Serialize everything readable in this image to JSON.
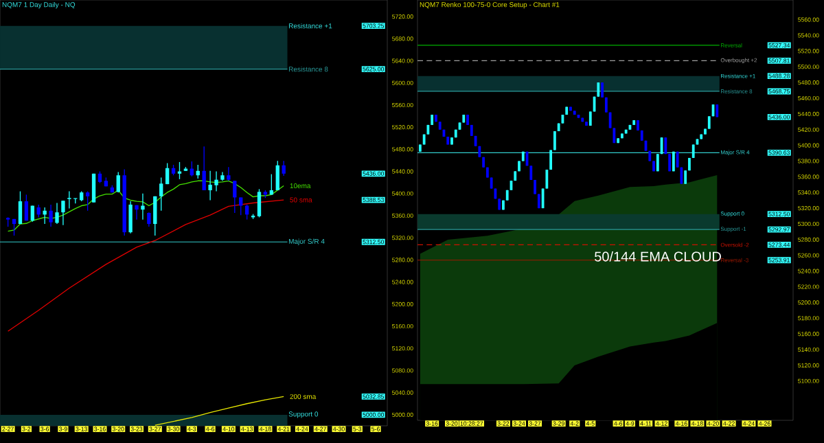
{
  "chart_data": [
    {
      "type": "candlestick",
      "title": "NQM7 1 Day Daily - NQ",
      "categories": [
        "2-27",
        null,
        null,
        "3-2",
        null,
        null,
        "3-6",
        null,
        null,
        "3-9",
        null,
        null,
        "3-13",
        null,
        null,
        "3-16",
        null,
        null,
        "3-20",
        null,
        null,
        "3-23",
        null,
        null,
        "3-27",
        null,
        null,
        "3-30",
        null,
        null,
        "4-3",
        null,
        null,
        "4-6",
        null,
        null,
        "4-10",
        null,
        null,
        "4-13",
        null,
        null,
        "4-18",
        null,
        null,
        "4-21",
        null,
        null,
        "4-24",
        null,
        null,
        "4-27",
        null,
        null,
        "4-30",
        null,
        null,
        "5-3",
        null,
        null,
        "5-6"
      ],
      "ohlc": [
        [
          5356,
          5357,
          5340,
          5353
        ],
        [
          5354,
          5354,
          5324,
          5345
        ],
        [
          5345,
          5404,
          5345,
          5386
        ],
        [
          5386,
          5398,
          5351,
          5351
        ],
        [
          5351,
          5378,
          5349,
          5378
        ],
        [
          5375,
          5380,
          5357,
          5362
        ],
        [
          5362,
          5375,
          5345,
          5369
        ],
        [
          5369,
          5380,
          5340,
          5348
        ],
        [
          5347,
          5383,
          5345,
          5366
        ],
        [
          5366,
          5387,
          5343,
          5387
        ],
        [
          5390,
          5404,
          5373,
          5392
        ],
        [
          5391,
          5391,
          5382,
          5391
        ],
        [
          5388,
          5404,
          5386,
          5402
        ],
        [
          5402,
          5404,
          5369,
          5395
        ],
        [
          5384,
          5436,
          5384,
          5436
        ],
        [
          5436,
          5440,
          5419,
          5421
        ],
        [
          5423,
          5429,
          5413,
          5413
        ],
        [
          5411,
          5415,
          5402,
          5402
        ],
        [
          5403,
          5439,
          5402,
          5433
        ],
        [
          5433,
          5444,
          5324,
          5330
        ],
        [
          5330,
          5386,
          5328,
          5380
        ],
        [
          5379,
          5379,
          5353,
          5371
        ],
        [
          5371,
          5400,
          5353,
          5378
        ],
        [
          5365,
          5366,
          5340,
          5345
        ],
        [
          5345,
          5395,
          5324,
          5395
        ],
        [
          5395,
          5429,
          5369,
          5418
        ],
        [
          5417,
          5455,
          5417,
          5446
        ],
        [
          5446,
          5452,
          5433,
          5436
        ],
        [
          5436,
          5457,
          5426,
          5440
        ],
        [
          5441,
          5448,
          5441,
          5445
        ],
        [
          5445,
          5458,
          5431,
          5433
        ],
        [
          5433,
          5452,
          5427,
          5441
        ],
        [
          5441,
          5485,
          5406,
          5406
        ],
        [
          5406,
          5441,
          5388,
          5416
        ],
        [
          5415,
          5440,
          5404,
          5425
        ],
        [
          5425,
          5439,
          5423,
          5433
        ],
        [
          5433,
          5448,
          5423,
          5425
        ],
        [
          5423,
          5423,
          5365,
          5393
        ],
        [
          5393,
          5393,
          5361,
          5378
        ],
        [
          5378,
          5380,
          5353,
          5362
        ],
        [
          5357,
          5363,
          5354,
          5360
        ],
        [
          5359,
          5408,
          5357,
          5403
        ],
        [
          5403,
          5406,
          5392,
          5398
        ],
        [
          5398,
          5435,
          5398,
          5406
        ],
        [
          5406,
          5459,
          5406,
          5451
        ],
        [
          5451,
          5459,
          5432,
          5436
        ],
        null,
        null,
        null,
        null,
        null,
        null,
        null,
        null,
        null,
        null,
        null,
        null,
        null,
        null,
        null
      ],
      "colors": [
        "#0000ff",
        "#0000ff",
        "#22ffff",
        "#0000ff",
        "#22ffff",
        "#0000ff",
        "#22ffff",
        "#0000ff",
        "#22ffff",
        "#22ffff",
        "#22ffff",
        "#22ffff",
        "#22ffff",
        "#0000ff",
        "#22ffff",
        "#0000ff",
        "#0000ff",
        "#0000ff",
        "#22ffff",
        "#0000ff",
        "#22ffff",
        "#0000ff",
        "#22ffff",
        "#0000ff",
        "#22ffff",
        "#22ffff",
        "#22ffff",
        "#0000ff",
        "#22ffff",
        "#22ffff",
        "#0000ff",
        "#22ffff",
        "#0000ff",
        "#22ffff",
        "#22ffff",
        "#22ffff",
        "#0000ff",
        "#0000ff",
        "#0000ff",
        "#0000ff",
        "#22ffff",
        "#22ffff",
        "#0000ff",
        "#22ffff",
        "#22ffff",
        "#0000ff",
        null,
        null,
        null,
        null,
        null,
        null,
        null,
        null,
        null,
        null,
        null,
        null,
        null,
        null,
        null
      ],
      "series": [
        {
          "type": "line",
          "name": "10ema",
          "color": "#44e000",
          "values": [
            5332,
            5334,
            5345,
            5346,
            5351,
            5354,
            5357,
            5355,
            5357,
            5361,
            5367,
            5373,
            5378,
            5380,
            5390,
            5396,
            5399,
            5399,
            5406,
            5392,
            5388,
            5386,
            5385,
            5378,
            5384,
            5394,
            5402,
            5408,
            5416,
            5418,
            5421,
            5423,
            5423,
            5421,
            5420,
            5421,
            5423,
            5418,
            5411,
            5402,
            5394,
            5396,
            5396,
            5398,
            5406,
            5414,
            null,
            null,
            null,
            null,
            null,
            null,
            null,
            null,
            null,
            null,
            null,
            null,
            null,
            null,
            null
          ]
        },
        {
          "type": "line",
          "name": "50 sma",
          "color": "#e00000",
          "values": [
            5151,
            null,
            null,
            null,
            null,
            5189,
            null,
            null,
            null,
            null,
            5229,
            null,
            null,
            null,
            null,
            null,
            5272,
            null,
            null,
            null,
            null,
            5303,
            null,
            null,
            5315,
            null,
            null,
            null,
            null,
            5344,
            null,
            null,
            null,
            5361,
            null,
            null,
            5377,
            null,
            null,
            null,
            5383,
            null,
            null,
            null,
            null,
            5388.53,
            null,
            null,
            null,
            null,
            null,
            null,
            null,
            null,
            null,
            null,
            null,
            null,
            null,
            null,
            null
          ]
        },
        {
          "type": "line",
          "name": "200 sma",
          "color": "#e8e800",
          "values": [
            null,
            null,
            null,
            null,
            null,
            null,
            null,
            null,
            null,
            null,
            null,
            null,
            null,
            null,
            null,
            null,
            null,
            null,
            null,
            null,
            null,
            null,
            null,
            null,
            4981,
            null,
            null,
            4988,
            null,
            null,
            4995,
            null,
            null,
            5004,
            null,
            null,
            5012,
            null,
            null,
            5020,
            null,
            null,
            5027,
            null,
            null,
            5032.85,
            null,
            null,
            null,
            null,
            null,
            null,
            null,
            null,
            null,
            null,
            null,
            null,
            null,
            null,
            null
          ]
        }
      ],
      "ylim": [
        4980,
        5750
      ],
      "yticks": [
        {
          "value": 5000,
          "label": "5000.00"
        },
        {
          "value": 5040,
          "label": "5040.00"
        },
        {
          "value": 5080,
          "label": "5080.00"
        },
        {
          "value": 5120,
          "label": "5120.00"
        },
        {
          "value": 5160,
          "label": "5160.00"
        },
        {
          "value": 5200,
          "label": "5200.00"
        },
        {
          "value": 5240,
          "label": "5240.00"
        },
        {
          "value": 5280,
          "label": "5280.00"
        },
        {
          "value": 5320,
          "label": "5320.00"
        },
        {
          "value": 5360,
          "label": "5360.00"
        },
        {
          "value": 5400,
          "label": "5400.00"
        },
        {
          "value": 5440,
          "label": "5440.00"
        },
        {
          "value": 5480,
          "label": "5480.00"
        },
        {
          "value": 5520,
          "label": "5520.00"
        },
        {
          "value": 5560,
          "label": "5560.00"
        },
        {
          "value": 5600,
          "label": "5600.00"
        },
        {
          "value": 5640,
          "label": "5640.00"
        },
        {
          "value": 5680,
          "label": "5680.00"
        },
        {
          "value": 5720,
          "label": "5720.00"
        }
      ],
      "y2lim": [
        4980,
        5750
      ],
      "y2ticks": [
        {
          "value": 5703.25,
          "label": "5703.25"
        },
        {
          "value": 5625,
          "label": "5625.00"
        },
        {
          "value": 5436,
          "label": "5436.00"
        },
        {
          "value": 5388.53,
          "label": "5388.53"
        },
        {
          "value": 5312.5,
          "label": "5312.50"
        },
        {
          "value": 5032.85,
          "label": "5032.85"
        },
        {
          "value": 5000,
          "label": "5000.00"
        }
      ],
      "ref_lines": [
        {
          "axis": "y",
          "value": 5312.5,
          "label": "Major S/R 4",
          "color": "#33cccc",
          "line_style": "solid"
        },
        {
          "axis": "y",
          "value": 5625,
          "label": "Resistance 8",
          "color": "#2a9a9a",
          "line_style": "solid"
        }
      ],
      "bands": [
        {
          "axis": "y",
          "from": 5625,
          "to": 5703.25,
          "label": "Resistance +1",
          "color": "#083030"
        },
        {
          "axis": "y",
          "from": 4980,
          "to": 5000,
          "label": "Support 0",
          "color": "#083030"
        }
      ]
    },
    {
      "type": "candlestick",
      "title": "NQM7 Renko 100-75-0 Core Setup - Chart #1",
      "categories": [
        null,
        null,
        null,
        "3-16",
        null,
        null,
        null,
        null,
        "3-20",
        null,
        null,
        null,
        null,
        "10:28:27",
        null,
        null,
        null,
        null,
        null,
        null,
        null,
        "3-22",
        null,
        null,
        null,
        "3-24",
        null,
        null,
        null,
        "3-27",
        null,
        null,
        null,
        null,
        null,
        "3-29",
        null,
        null,
        null,
        "4-2",
        null,
        null,
        null,
        "4-5",
        null,
        null,
        null,
        null,
        null,
        null,
        "4-6",
        null,
        null,
        "4-9",
        null,
        null,
        null,
        "4-11",
        null,
        null,
        null,
        "4-12",
        null,
        null,
        null,
        null,
        "4-16",
        null,
        null,
        null,
        "4-18",
        null,
        null,
        null,
        "4-20",
        null,
        null,
        null,
        "4-22",
        null,
        null,
        null,
        null,
        "4-24",
        null,
        null,
        null,
        "4-26"
      ],
      "ohlc": [
        [
          5392,
          5401,
          5392,
          5401
        ],
        [
          5401,
          5414,
          5401,
          5414
        ],
        [
          5414,
          5426,
          5414,
          5426
        ],
        [
          5426,
          5439,
          5426,
          5439
        ],
        [
          5439,
          5439,
          5430,
          5430
        ],
        [
          5430,
          5430,
          5420,
          5420
        ],
        [
          5420,
          5420,
          5411,
          5411
        ],
        [
          5411,
          5411,
          5401,
          5401
        ],
        [
          5401,
          5410,
          5401,
          5410
        ],
        [
          5410,
          5420,
          5410,
          5420
        ],
        [
          5420,
          5429,
          5420,
          5429
        ],
        [
          5429,
          5439,
          5429,
          5439
        ],
        [
          5439,
          5439,
          5426,
          5426
        ],
        [
          5426,
          5426,
          5412,
          5412
        ],
        [
          5412,
          5412,
          5399,
          5399
        ],
        [
          5399,
          5399,
          5385,
          5385
        ],
        [
          5385,
          5385,
          5372,
          5372
        ],
        [
          5372,
          5372,
          5359,
          5359
        ],
        [
          5359,
          5359,
          5345,
          5345
        ],
        [
          5345,
          5345,
          5332,
          5332
        ],
        [
          5332,
          5332,
          5318,
          5318
        ],
        [
          5318,
          5330,
          5318,
          5330
        ],
        [
          5330,
          5343,
          5330,
          5343
        ],
        [
          5343,
          5355,
          5343,
          5355
        ],
        [
          5355,
          5367,
          5355,
          5367
        ],
        [
          5367,
          5380,
          5367,
          5380
        ],
        [
          5380,
          5392,
          5380,
          5392
        ],
        [
          5392,
          5392,
          5374,
          5374
        ],
        [
          5374,
          5374,
          5356,
          5356
        ],
        [
          5356,
          5356,
          5338,
          5338
        ],
        [
          5338,
          5338,
          5320,
          5320
        ],
        [
          5320,
          5345,
          5320,
          5345
        ],
        [
          5345,
          5369,
          5345,
          5369
        ],
        [
          5369,
          5394,
          5369,
          5394
        ],
        [
          5394,
          5418,
          5394,
          5418
        ],
        [
          5418,
          5428,
          5418,
          5428
        ],
        [
          5428,
          5439,
          5428,
          5439
        ],
        [
          5439,
          5449,
          5439,
          5449
        ],
        [
          5449,
          5449,
          5444,
          5444
        ],
        [
          5444,
          5444,
          5439,
          5439
        ],
        [
          5439,
          5439,
          5435,
          5435
        ],
        [
          5435,
          5435,
          5430,
          5430
        ],
        [
          5430,
          5430,
          5425,
          5425
        ],
        [
          5425,
          5443,
          5425,
          5443
        ],
        [
          5443,
          5462,
          5443,
          5462
        ],
        [
          5462,
          5480,
          5462,
          5480
        ],
        [
          5480,
          5480,
          5461,
          5461
        ],
        [
          5461,
          5461,
          5442,
          5442
        ],
        [
          5442,
          5442,
          5422,
          5422
        ],
        [
          5422,
          5422,
          5403,
          5403
        ],
        [
          5403,
          5409,
          5403,
          5409
        ],
        [
          5409,
          5415,
          5409,
          5415
        ],
        [
          5415,
          5420,
          5415,
          5420
        ],
        [
          5420,
          5426,
          5420,
          5426
        ],
        [
          5426,
          5432,
          5426,
          5432
        ],
        [
          5432,
          5432,
          5419,
          5419
        ],
        [
          5419,
          5419,
          5406,
          5406
        ],
        [
          5406,
          5406,
          5393,
          5393
        ],
        [
          5393,
          5393,
          5380,
          5380
        ],
        [
          5380,
          5380,
          5367,
          5367
        ],
        [
          5367,
          5389,
          5367,
          5389
        ],
        [
          5389,
          5410,
          5389,
          5410
        ],
        [
          5410,
          5410,
          5389,
          5389
        ],
        [
          5389,
          5389,
          5367,
          5367
        ],
        [
          5367,
          5392,
          5367,
          5392
        ],
        [
          5392,
          5392,
          5372,
          5372
        ],
        [
          5372,
          5372,
          5351,
          5351
        ],
        [
          5351,
          5368,
          5351,
          5368
        ],
        [
          5368,
          5384,
          5368,
          5384
        ],
        [
          5384,
          5401,
          5384,
          5401
        ],
        [
          5401,
          5408,
          5401,
          5408
        ],
        [
          5408,
          5414,
          5408,
          5414
        ],
        [
          5414,
          5421,
          5414,
          5421
        ],
        [
          5421,
          5437,
          5421,
          5437
        ],
        [
          5437,
          5452,
          5437,
          5452
        ],
        [
          5452,
          5452,
          5436,
          5436
        ],
        null,
        null,
        null,
        null,
        null,
        null,
        null,
        null,
        null,
        null,
        null,
        null
      ],
      "colors": [
        "#22ffff",
        "#22ffff",
        "#22ffff",
        "#22ffff",
        "#0000ff",
        "#0000ff",
        "#0000ff",
        "#0000ff",
        "#22ffff",
        "#22ffff",
        "#22ffff",
        "#22ffff",
        "#0000ff",
        "#0000ff",
        "#0000ff",
        "#0000ff",
        "#0000ff",
        "#0000ff",
        "#0000ff",
        "#0000ff",
        "#0000ff",
        "#22ffff",
        "#22ffff",
        "#22ffff",
        "#22ffff",
        "#22ffff",
        "#22ffff",
        "#0000ff",
        "#0000ff",
        "#0000ff",
        "#0000ff",
        "#22ffff",
        "#22ffff",
        "#22ffff",
        "#22ffff",
        "#22ffff",
        "#22ffff",
        "#22ffff",
        "#0000ff",
        "#0000ff",
        "#0000ff",
        "#0000ff",
        "#0000ff",
        "#22ffff",
        "#22ffff",
        "#22ffff",
        "#0000ff",
        "#0000ff",
        "#0000ff",
        "#0000ff",
        "#22ffff",
        "#22ffff",
        "#22ffff",
        "#22ffff",
        "#22ffff",
        "#0000ff",
        "#0000ff",
        "#0000ff",
        "#0000ff",
        "#0000ff",
        "#22ffff",
        "#22ffff",
        "#0000ff",
        "#0000ff",
        "#22ffff",
        "#0000ff",
        "#0000ff",
        "#22ffff",
        "#22ffff",
        "#22ffff",
        "#22ffff",
        "#22ffff",
        "#22ffff",
        "#22ffff",
        "#22ffff",
        "#0000ff",
        null,
        null,
        null,
        null,
        null,
        null,
        null,
        null,
        null,
        null,
        null,
        null
      ],
      "series": [
        {
          "type": "area",
          "color": "#0b3a0b",
          "values": [
            5262,
            null,
            null,
            null,
            null,
            null,
            null,
            5280,
            null,
            null,
            null,
            null,
            null,
            null,
            null,
            null,
            null,
            5285,
            null,
            null,
            null,
            null,
            null,
            null,
            null,
            5293,
            null,
            null,
            null,
            null,
            null,
            null,
            null,
            null,
            null,
            5312,
            null,
            null,
            null,
            5329,
            null,
            null,
            null,
            null,
            null,
            5336,
            null,
            null,
            null,
            null,
            null,
            null,
            null,
            5347,
            null,
            null,
            null,
            null,
            null,
            5348,
            null,
            null,
            5350,
            null,
            null,
            null,
            null,
            null,
            5353,
            null,
            null,
            null,
            null,
            null,
            null,
            5362,
            null,
            null,
            null,
            null,
            null,
            null,
            null,
            null,
            null,
            null,
            null,
            null
          ]
        },
        {
          "type": "area",
          "color": "#000000",
          "values": [
            5096,
            null,
            null,
            null,
            null,
            null,
            null,
            5096,
            null,
            null,
            null,
            null,
            null,
            null,
            null,
            null,
            null,
            5096,
            null,
            null,
            null,
            null,
            null,
            null,
            null,
            5096,
            null,
            null,
            null,
            null,
            null,
            null,
            null,
            null,
            null,
            5097,
            null,
            null,
            null,
            5120,
            null,
            null,
            null,
            null,
            null,
            5131,
            null,
            null,
            null,
            null,
            null,
            null,
            null,
            5144,
            null,
            null,
            null,
            null,
            null,
            5149,
            null,
            null,
            5151,
            null,
            null,
            null,
            null,
            null,
            5158,
            null,
            null,
            null,
            null,
            null,
            null,
            5174,
            null,
            null,
            null,
            null,
            null,
            null,
            null,
            null,
            null,
            null,
            null,
            null
          ]
        }
      ],
      "ylim": [
        5050,
        5585
      ],
      "yticks": [
        {
          "value": 5100,
          "label": "5100.00"
        },
        {
          "value": 5120,
          "label": "5120.00"
        },
        {
          "value": 5140,
          "label": "5140.00"
        },
        {
          "value": 5160,
          "label": "5160.00"
        },
        {
          "value": 5180,
          "label": "5180.00"
        },
        {
          "value": 5200,
          "label": "5200.00"
        },
        {
          "value": 5220,
          "label": "5220.00"
        },
        {
          "value": 5240,
          "label": "5240.00"
        },
        {
          "value": 5260,
          "label": "5260.00"
        },
        {
          "value": 5280,
          "label": "5280.00"
        },
        {
          "value": 5300,
          "label": "5300.00"
        },
        {
          "value": 5320,
          "label": "5320.00"
        },
        {
          "value": 5340,
          "label": "5340.00"
        },
        {
          "value": 5360,
          "label": "5360.00"
        },
        {
          "value": 5380,
          "label": "5380.00"
        },
        {
          "value": 5400,
          "label": "5400.00"
        },
        {
          "value": 5420,
          "label": "5420.00"
        },
        {
          "value": 5440,
          "label": "5440.00"
        },
        {
          "value": 5460,
          "label": "5460.00"
        },
        {
          "value": 5480,
          "label": "5480.00"
        },
        {
          "value": 5500,
          "label": "5500.00"
        },
        {
          "value": 5520,
          "label": "5520.00"
        },
        {
          "value": 5540,
          "label": "5540.00"
        },
        {
          "value": 5560,
          "label": "5560.00"
        }
      ],
      "y2lim": [
        5050,
        5585
      ],
      "y2ticks": [
        {
          "value": 5527.34,
          "label": "5527.34"
        },
        {
          "value": 5507.81,
          "label": "5507.81"
        },
        {
          "value": 5488.28,
          "label": "5488.28"
        },
        {
          "value": 5468.75,
          "label": "5468.75"
        },
        {
          "value": 5436,
          "label": "5436.00"
        },
        {
          "value": 5390.63,
          "label": "5390.63"
        },
        {
          "value": 5312.5,
          "label": "5312.50"
        },
        {
          "value": 5292.97,
          "label": "5292.97"
        },
        {
          "value": 5273.44,
          "label": "5273.44"
        },
        {
          "value": 5253.91,
          "label": "5253.91"
        }
      ],
      "ref_lines": [
        {
          "axis": "y",
          "value": 5527.34,
          "label": "Reversal",
          "color": "#00b000",
          "line_style": "solid"
        },
        {
          "axis": "y",
          "value": 5507.81,
          "label": "Overbought +2",
          "color": "#a0a0a0",
          "line_style": "dashed"
        },
        {
          "axis": "y",
          "value": 5468.75,
          "label": "Resistance 8",
          "color": "#2a9a9a",
          "line_style": "solid"
        },
        {
          "axis": "y",
          "value": 5390.63,
          "label": "Major S/R 4",
          "color": "#33cccc",
          "line_style": "solid"
        },
        {
          "axis": "y",
          "value": 5292.97,
          "label": "Support -1",
          "color": "#2a9a9a",
          "line_style": "solid"
        },
        {
          "axis": "y",
          "value": 5273.44,
          "label": "Oversold -2",
          "color": "#cc1100",
          "line_style": "dashed"
        },
        {
          "axis": "y",
          "value": 5253.91,
          "label": "Reversal -3",
          "color": "#a01800",
          "line_style": "solid"
        }
      ],
      "bands": [
        {
          "axis": "y",
          "from": 5468.75,
          "to": 5488.28,
          "label": "Resistance +1",
          "color": "#083030"
        },
        {
          "axis": "y",
          "from": 5292.97,
          "to": 5312.5,
          "label": "Support 0",
          "color": "#0a3a2e"
        }
      ],
      "annotations": [
        "50/144 EMA CLOUD"
      ]
    }
  ]
}
